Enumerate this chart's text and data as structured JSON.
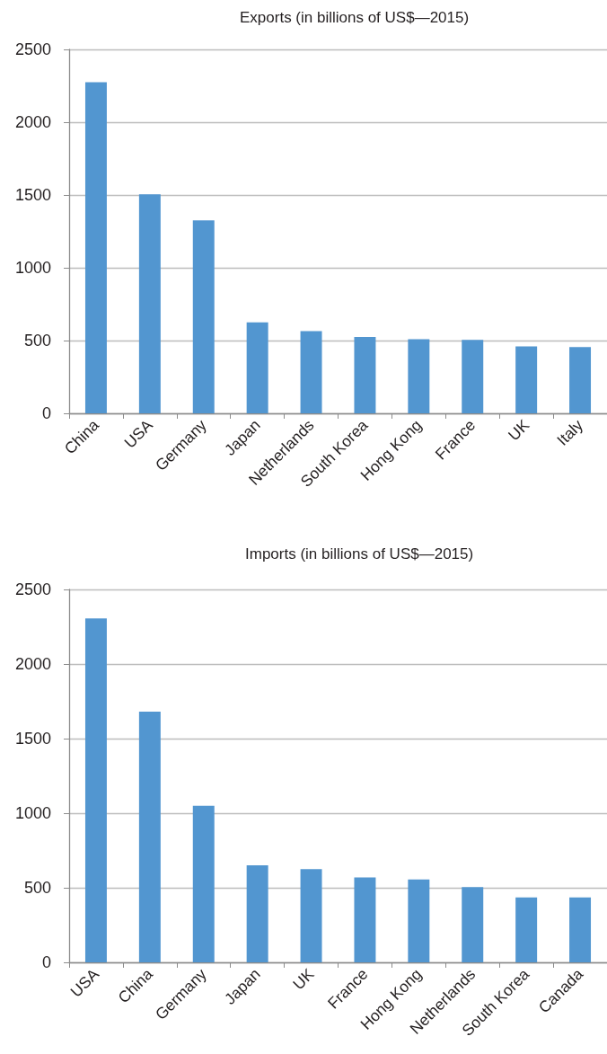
{
  "chart_data": [
    {
      "type": "bar",
      "title": "Exports (in billions of US$—2015)",
      "categories": [
        "China",
        "USA",
        "Germany",
        "Japan",
        "Netherlands",
        "South Korea",
        "Hong Kong",
        "France",
        "UK",
        "Italy"
      ],
      "values": [
        2275,
        1505,
        1325,
        625,
        565,
        525,
        510,
        505,
        460,
        455
      ],
      "color": "#5296d0",
      "ylim": [
        0,
        2500
      ],
      "yticks": [
        0,
        500,
        1000,
        1500,
        2000,
        2500
      ],
      "grid": "y"
    },
    {
      "type": "bar",
      "title": "Imports (in billions of US$—2015)",
      "categories": [
        "USA",
        "China",
        "Germany",
        "Japan",
        "UK",
        "France",
        "Hong Kong",
        "Netherlands",
        "South Korea",
        "Canada"
      ],
      "values": [
        2305,
        1680,
        1050,
        650,
        625,
        570,
        555,
        505,
        435,
        435
      ],
      "color": "#5296d0",
      "ylim": [
        0,
        2500
      ],
      "yticks": [
        0,
        500,
        1000,
        1500,
        2000,
        2500
      ],
      "grid": "y"
    }
  ]
}
